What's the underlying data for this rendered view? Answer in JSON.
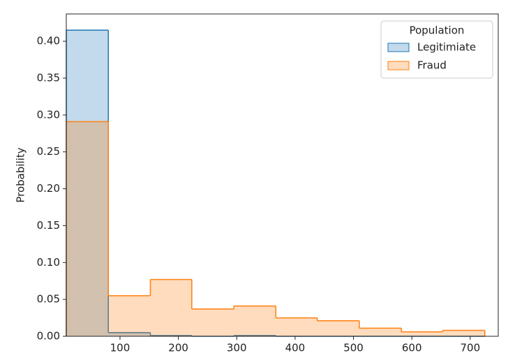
{
  "chart_data": {
    "type": "histogram",
    "y_label": "Probability",
    "bins": [
      8,
      80,
      152,
      223,
      295,
      367,
      438,
      510,
      582,
      653,
      725
    ],
    "series": [
      {
        "name": "Legitimiate",
        "color": "#1f77b4",
        "values": [
          0.415,
          0.005,
          0.001,
          0,
          0.001,
          0,
          0,
          0,
          0,
          0
        ]
      },
      {
        "name": "Fraud",
        "color": "#ff7f0e",
        "values": [
          0.291,
          0.055,
          0.077,
          0.037,
          0.041,
          0.025,
          0.021,
          0.011,
          0.006,
          0.008
        ]
      }
    ],
    "legend_title": "Population",
    "legend": "upper right",
    "xlim": [
      8,
      748
    ],
    "xticks": [
      100,
      200,
      300,
      400,
      500,
      600,
      700
    ],
    "ylim": [
      0,
      0.437
    ],
    "yticks": [
      {
        "value": 0,
        "label": "0.00"
      },
      {
        "value": 0.05,
        "label": "0.05"
      },
      {
        "value": 0.1,
        "label": "0.10"
      },
      {
        "value": 0.15,
        "label": "0.15"
      },
      {
        "value": 0.2,
        "label": "0.20"
      },
      {
        "value": 0.25,
        "label": "0.25"
      },
      {
        "value": 0.3,
        "label": "0.30"
      },
      {
        "value": 0.35,
        "label": "0.35"
      },
      {
        "value": 0.4,
        "label": "0.40"
      }
    ]
  }
}
